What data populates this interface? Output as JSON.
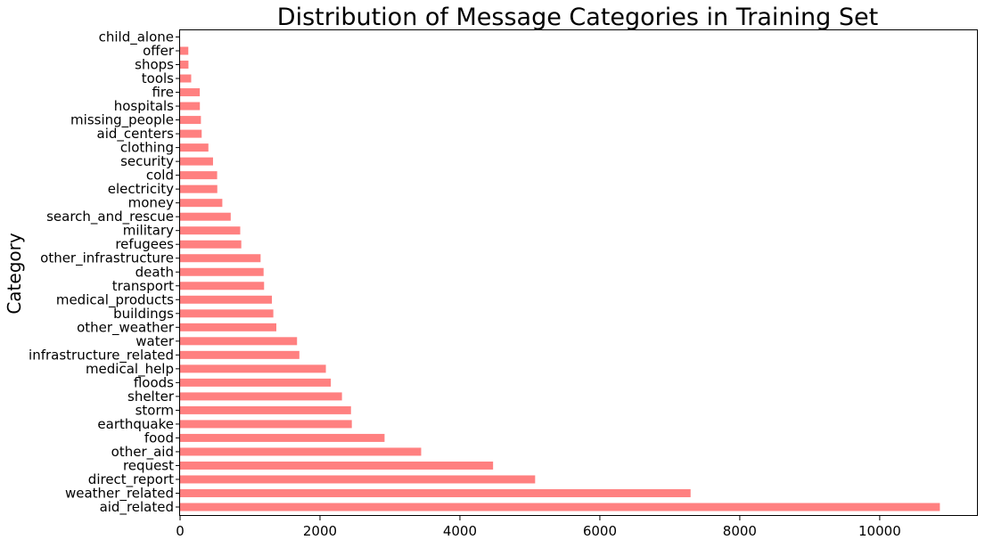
{
  "chart_data": {
    "type": "bar",
    "orientation": "horizontal",
    "title": "Distribution of Message Categories in Training Set",
    "xlabel": "",
    "ylabel": "Category",
    "categories": [
      "aid_related",
      "weather_related",
      "direct_report",
      "request",
      "other_aid",
      "food",
      "earthquake",
      "storm",
      "shelter",
      "floods",
      "medical_help",
      "infrastructure_related",
      "water",
      "other_weather",
      "buildings",
      "medical_products",
      "transport",
      "death",
      "other_infrastructure",
      "refugees",
      "military",
      "search_and_rescue",
      "money",
      "electricity",
      "cold",
      "security",
      "clothing",
      "aid_centers",
      "missing_people",
      "hospitals",
      "fire",
      "tools",
      "shops",
      "offer",
      "child_alone"
    ],
    "values": [
      10860,
      7297,
      5075,
      4474,
      3446,
      2923,
      2455,
      2443,
      2314,
      2155,
      2084,
      1705,
      1672,
      1376,
      1333,
      1313,
      1201,
      1194,
      1151,
      875,
      860,
      724,
      604,
      532,
      530,
      471,
      405,
      309,
      298,
      283,
      282,
      159,
      120,
      118,
      0
    ],
    "xlim": [
      0,
      11403
    ],
    "xticks": [
      0,
      2000,
      4000,
      6000,
      8000,
      10000
    ],
    "grid": false,
    "legend": "none",
    "bar_color": "#ff8080"
  }
}
